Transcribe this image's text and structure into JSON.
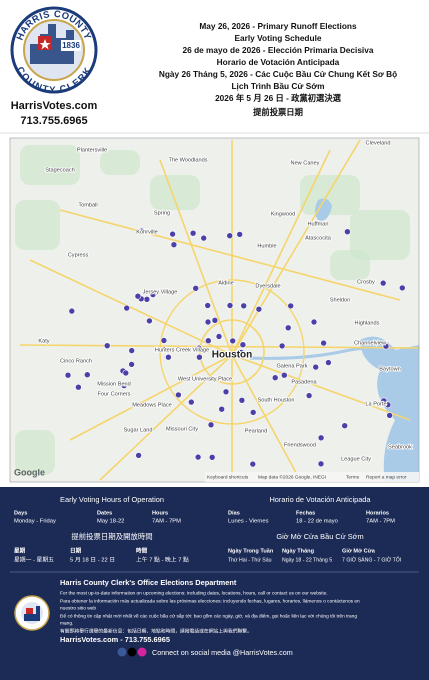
{
  "header": {
    "logo_top": "HARRIS COUNTY",
    "logo_year": "1836",
    "logo_bottom": "COUNTY CLERK",
    "website": "HarrisVotes.com",
    "phone": "713.755.6965",
    "lines": [
      "May 26, 2026 - Primary Runoff Elections",
      "Early Voting Schedule",
      "26 de mayo de 2026 - Elección Primaria Decisiva",
      "Horario de Votación Anticipada",
      "Ngày 26 Tháng 5, 2026 - Các Cuộc Bầu Cử Chung Kết Sơ Bộ",
      "Lịch Trình Bầu Cử Sớm",
      "2026 年 5 月 26 日 - 政黨初選決選",
      "提前投票日期"
    ]
  },
  "map": {
    "places": [
      "Plantersville",
      "Stagecoach",
      "The Woodlands",
      "Cleveland",
      "New Caney",
      "Tomball",
      "Spring",
      "Kingwood",
      "Kohrville",
      "Humble",
      "Atascocita",
      "Huffman",
      "Cypress",
      "Jersey Village",
      "Aldine",
      "Dyersdale",
      "Crosby",
      "Sheldon",
      "Katy",
      "Highlands",
      "Hunters Creek Village",
      "Houston",
      "Channelview",
      "Galena Park",
      "Baytown",
      "Cinco Ranch",
      "West University Place",
      "Pasadena",
      "Mission Bend",
      "Four Corners",
      "Meadows Place",
      "South Houston",
      "La Porte",
      "Sugar Land",
      "Missouri City",
      "Pearland",
      "Friendswood",
      "League City",
      "Seabrook"
    ],
    "google": "Google",
    "attribution": [
      "Keyboard shortcuts",
      "Map data ©2026 Google, INEGI",
      "Terms",
      "Report a map error"
    ]
  },
  "schedule": {
    "english": {
      "title": "Early Voting Hours of Operation",
      "headers": [
        "Days",
        "Dates",
        "Hours"
      ],
      "values": [
        "Monday - Friday",
        "May 18-22",
        "7AM - 7PM"
      ]
    },
    "spanish": {
      "title": "Horario de Votación Anticipada",
      "headers": [
        "Días",
        "Fechas",
        "Horarios"
      ],
      "values": [
        "Lunes - Viernes",
        "18 - 22 de mayo",
        "7AM - 7PM"
      ]
    },
    "chinese": {
      "title": "提前投票日期及開放時間",
      "headers": [
        "星期",
        "日期",
        "時間"
      ],
      "values": [
        "星期一 - 星期五",
        "5 月 18 日 - 22 日",
        "上午 7 點 - 晚上 7 點"
      ]
    },
    "vietnamese": {
      "title": "Giờ Mở Cửa Bầu Cử Sớm",
      "headers": [
        "Ngày Trong Tuần",
        "Ngày Tháng",
        "Giờ Mở Cửa"
      ],
      "values": [
        "Thứ Hai - Thứ Sáu",
        "Ngày 18 - 22 Tháng 5",
        "7 GIỜ SÁNG - 7 GIỜ TỐI"
      ]
    }
  },
  "footer": {
    "title": "Harris County Clerk's Office Elections Department",
    "lines": [
      "For the most up-to-date information on upcoming elections: including dates, locations, hours, call or contact us on our website.",
      "Para obtener la información más actualizada sobre las próximas elecciones: incluyendo fechas, lugares, horarios, llámenos o contáctenos en",
      "nuestro sitio web",
      "Để có thông tin cập nhật mới nhất về các cuộc bầu cử sắp tới: bao gồm các ngày, giờ, và địa điểm, gọi hoặc liên lạc với chúng tôi trên trang",
      "mạng.",
      "有關即將舉行選舉的最新信息：包括日期、地點和時間，請撥電話或在網站上與我們聯繫。"
    ],
    "contact": "HarrisVotes.com - 713.755.6965",
    "social": "Connect on social media @HarrisVotes.com"
  }
}
